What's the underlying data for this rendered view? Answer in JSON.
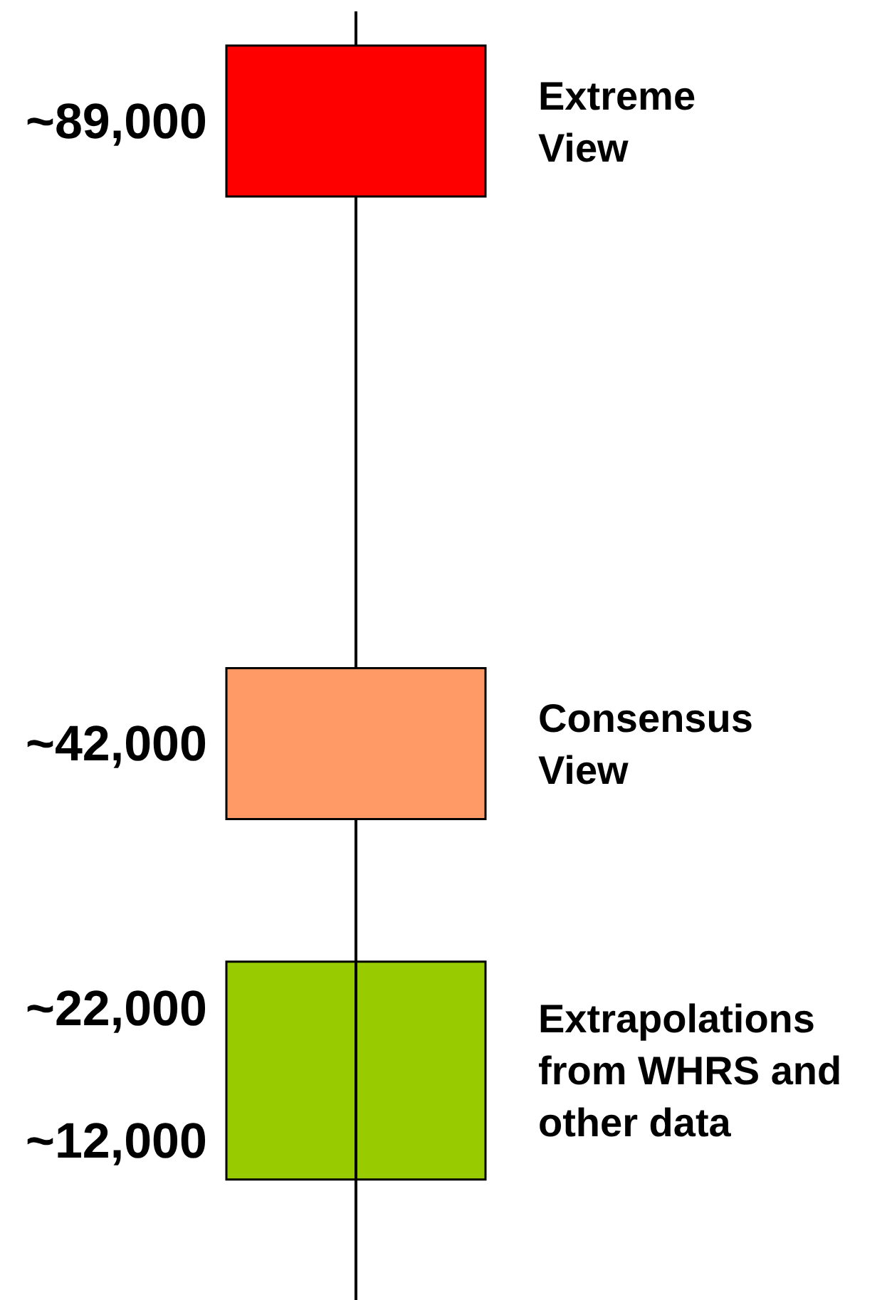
{
  "chart_data": {
    "type": "other",
    "categories": [
      "Extreme\nView",
      "Consensus\nView",
      "Extrapolations\nfrom WHRS and\nother data"
    ],
    "colors": [
      "#ff0000",
      "#ff9966",
      "#99cc00"
    ],
    "series": [
      {
        "values": [
          89000,
          42000,
          22000
        ],
        "value_labels": [
          "~89,000",
          "~42,000",
          "~22,000"
        ]
      },
      {
        "values": [
          null,
          null,
          12000
        ],
        "value_labels": [
          null,
          null,
          "~12,000"
        ]
      }
    ]
  }
}
